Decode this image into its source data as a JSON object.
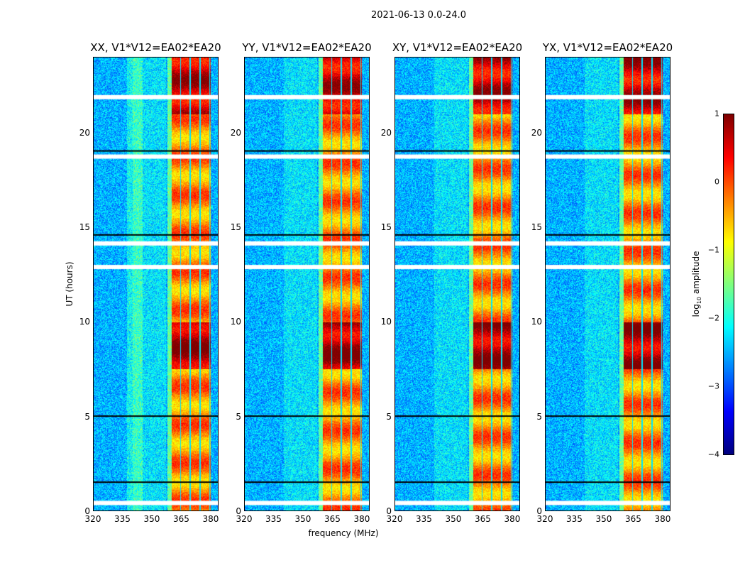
{
  "chart_data": {
    "type": "heatmap",
    "title": "2021-06-13 0.0-24.0",
    "xlabel": "frequency (MHz)",
    "ylabel": "UT (hours)",
    "xlim": [
      320,
      384
    ],
    "ylim": [
      0,
      24
    ],
    "xticks": [
      "320",
      "335",
      "350",
      "365",
      "380"
    ],
    "yticks": [
      "0",
      "5",
      "10",
      "15",
      "20"
    ],
    "panels": [
      {
        "title": "XX, V1*V12=EA02*EA20"
      },
      {
        "title": "YY, V1*V12=EA02*EA20"
      },
      {
        "title": "XY, V1*V12=EA02*EA20"
      },
      {
        "title": "YX, V1*V12=EA02*EA20"
      }
    ],
    "bright_band_mhz": [
      360,
      380
    ],
    "flagged_ut_hours": [
      0.4,
      12.9,
      14.15,
      18.75,
      21.9,
      1.5,
      5.0,
      14.6,
      19.05
    ],
    "colorbar": {
      "label": "log10 amplitude",
      "label_main": "log",
      "label_sub": "10",
      "label_rest": " amplitude",
      "range": [
        -4,
        1
      ],
      "ticks": [
        "1",
        "0",
        "−1",
        "−2",
        "−3",
        "−4"
      ],
      "colormap": "jet"
    }
  }
}
